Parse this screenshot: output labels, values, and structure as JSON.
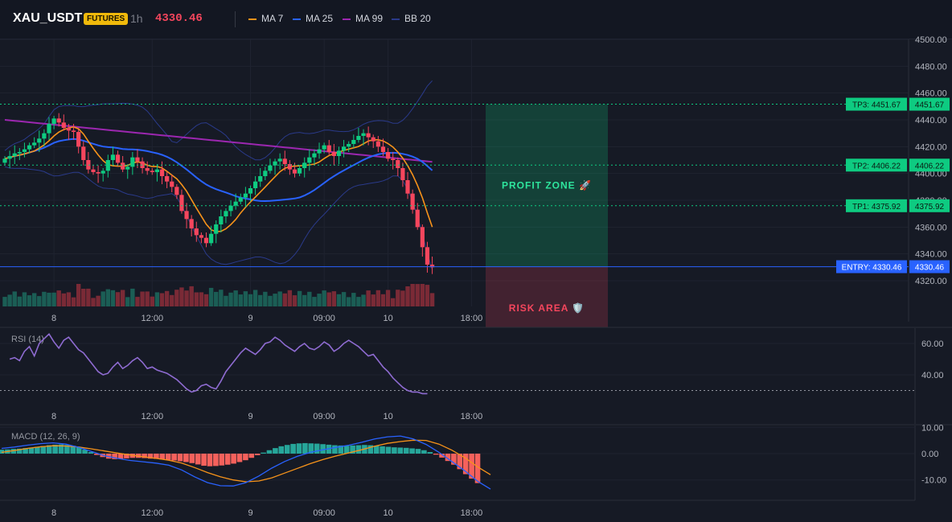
{
  "header": {
    "symbol": "XAU_USDT",
    "badge": "FUTURES",
    "interval": "1h",
    "price": "4330.46",
    "legend": [
      {
        "label": "MA 7",
        "color": "#f7931a"
      },
      {
        "label": "MA 25",
        "color": "#2962ff"
      },
      {
        "label": "MA 99",
        "color": "#9c27b0"
      },
      {
        "label": "BB 20",
        "color": "#2a3a8a"
      }
    ]
  },
  "colors": {
    "up": "#0ecb81",
    "down": "#f6465d",
    "accent": "#00e676"
  },
  "chart_data": [
    {
      "type": "candlestick",
      "yticks": [
        4320,
        4340,
        4360,
        4380,
        4400,
        4420,
        4440,
        4460,
        4480,
        4500
      ],
      "ytick_labels": [
        "4320.00",
        "4340.00",
        "4360.00",
        "4380.00",
        "4400.00",
        "4420.00",
        "4440.00",
        "4460.00",
        "4480.00",
        "4500.00"
      ],
      "ylim": [
        4310,
        4505
      ],
      "xtick_labels": [
        {
          "bar": 10,
          "label": "8"
        },
        {
          "bar": 30,
          "label": "12:00"
        },
        {
          "bar": 50,
          "label": "9"
        },
        {
          "bar": 65,
          "label": "09:00"
        },
        {
          "bar": 78,
          "label": "10"
        },
        {
          "bar": 95,
          "label": "18:00"
        }
      ],
      "close": [
        4411,
        4413,
        4415,
        4416,
        4418,
        4421,
        4423,
        4426,
        4430,
        4437,
        4441,
        4438,
        4434,
        4432,
        4431,
        4420,
        4410,
        4403,
        4401,
        4400,
        4402,
        4410,
        4414,
        4408,
        4403,
        4405,
        4412,
        4409,
        4404,
        4402,
        4401,
        4403,
        4398,
        4394,
        4390,
        4384,
        4372,
        4366,
        4359,
        4354,
        4352,
        4348,
        4355,
        4362,
        4368,
        4372,
        4376,
        4379,
        4382,
        4385,
        4389,
        4394,
        4398,
        4402,
        4406,
        4409,
        4411,
        4407,
        4403,
        4400,
        4404,
        4408,
        4412,
        4415,
        4418,
        4421,
        4416,
        4413,
        4417,
        4420,
        4422,
        4425,
        4428,
        4430,
        4427,
        4424,
        4420,
        4416,
        4411,
        4410,
        4404,
        4395,
        4385,
        4373,
        4360,
        4345,
        4332,
        4330
      ],
      "annotations": [
        {
          "label": "TP3: 4451.67",
          "value": 4451.67,
          "axis_label": "4451.67"
        },
        {
          "label": "TP2: 4406.22",
          "value": 4406.22,
          "axis_label": "4406.22"
        },
        {
          "label": "TP1: 4375.92",
          "value": 4375.92,
          "axis_label": "4375.92"
        },
        {
          "label": "ENTRY: 4330.46",
          "value": 4330.46,
          "axis_label": "4330.46"
        }
      ],
      "zones": [
        {
          "label": "PROFIT ZONE 🚀",
          "from": 4330.46,
          "to": 4451.67
        },
        {
          "label": "RISK AREA 🛡️",
          "from": 4330.46,
          "to": "bottom"
        }
      ]
    },
    {
      "type": "line",
      "title": "RSI (14)",
      "yticks": [
        40,
        60
      ],
      "ytick_labels": [
        "40.00",
        "60.00"
      ],
      "ylim": [
        20,
        70
      ],
      "level": 30,
      "xtick_labels": [
        "8",
        "12:00",
        "9",
        "09:00",
        "10",
        "18:00"
      ],
      "values": [
        50,
        51,
        49,
        55,
        58,
        52,
        60,
        63,
        66,
        61,
        57,
        62,
        64,
        60,
        56,
        54,
        50,
        46,
        42,
        40,
        41,
        45,
        48,
        44,
        46,
        49,
        51,
        48,
        44,
        45,
        43,
        42,
        41,
        39,
        37,
        34,
        31,
        29,
        30,
        33,
        34,
        32,
        31,
        36,
        42,
        46,
        50,
        54,
        57,
        55,
        53,
        56,
        60,
        61,
        64,
        62,
        59,
        57,
        55,
        58,
        60,
        57,
        56,
        58,
        61,
        59,
        55,
        57,
        60,
        62,
        60,
        58,
        55,
        52,
        53,
        49,
        45,
        42,
        38,
        35,
        32,
        30,
        29,
        29,
        28,
        28
      ],
      "value_start_bar": 1
    },
    {
      "type": "bar",
      "title": "MACD (12, 26, 9)",
      "yticks": [
        -10,
        0,
        10
      ],
      "ytick_labels": [
        "-10.00",
        "0.00",
        "10.00"
      ],
      "ylim": [
        -14,
        11
      ],
      "xtick_labels": [
        "8",
        "12:00",
        "9",
        "09:00",
        "10",
        "18:00"
      ],
      "histogram": [
        1.5,
        1.6,
        1.8,
        1.9,
        2.1,
        2.3,
        2.6,
        2.9,
        3.2,
        3.4,
        3.5,
        3.3,
        3.0,
        2.4,
        1.5,
        0.6,
        -0.5,
        -1.3,
        -1.9,
        -2.1,
        -2.0,
        -1.8,
        -1.6,
        -1.6,
        -1.7,
        -1.9,
        -2.0,
        -2.2,
        -2.4,
        -2.6,
        -2.9,
        -3.2,
        -3.6,
        -4.1,
        -4.6,
        -4.8,
        -4.7,
        -4.5,
        -4.2,
        -3.8,
        -3.2,
        -2.5,
        -1.6,
        -0.6,
        0.4,
        1.3,
        2.1,
        2.8,
        3.3,
        3.7,
        3.9,
        4.0,
        3.9,
        3.8,
        3.6,
        3.4,
        3.2,
        3.1,
        3.0,
        3.1,
        3.2,
        3.3,
        3.2,
        3.0,
        2.8,
        2.6,
        2.4,
        2.3,
        2.2,
        2.0,
        1.8,
        1.3,
        0.6,
        -0.4,
        -1.5,
        -2.8,
        -4.2,
        -5.9,
        -7.8,
        -9.5,
        -11.2
      ],
      "macd": [
        2.0,
        2.5,
        3.2,
        3.8,
        4.1,
        3.6,
        2.4,
        0.8,
        -0.8,
        -1.8,
        -2.6,
        -3.1,
        -3.6,
        -4.4,
        -6.2,
        -8.8,
        -11.0,
        -12.2,
        -12.3,
        -11.0,
        -8.5,
        -5.5,
        -3.0,
        -1.0,
        0.5,
        1.5,
        2.4,
        3.2,
        4.3,
        5.6,
        6.4,
        6.7,
        5.6,
        3.5,
        0.5,
        -3.0,
        -6.5,
        -10.5,
        -13.5
      ],
      "signal": [
        0.5,
        1.2,
        2.0,
        2.6,
        3.0,
        2.9,
        2.5,
        1.8,
        1.0,
        0.2,
        -0.5,
        -1.2,
        -1.8,
        -2.5,
        -3.6,
        -5.3,
        -7.2,
        -8.8,
        -10.0,
        -10.7,
        -10.4,
        -9.2,
        -7.4,
        -5.6,
        -3.8,
        -2.2,
        -0.9,
        0.3,
        1.5,
        2.8,
        3.9,
        4.6,
        5.1,
        5.0,
        3.6,
        1.3,
        -1.5,
        -5.0,
        -8.0
      ]
    }
  ]
}
